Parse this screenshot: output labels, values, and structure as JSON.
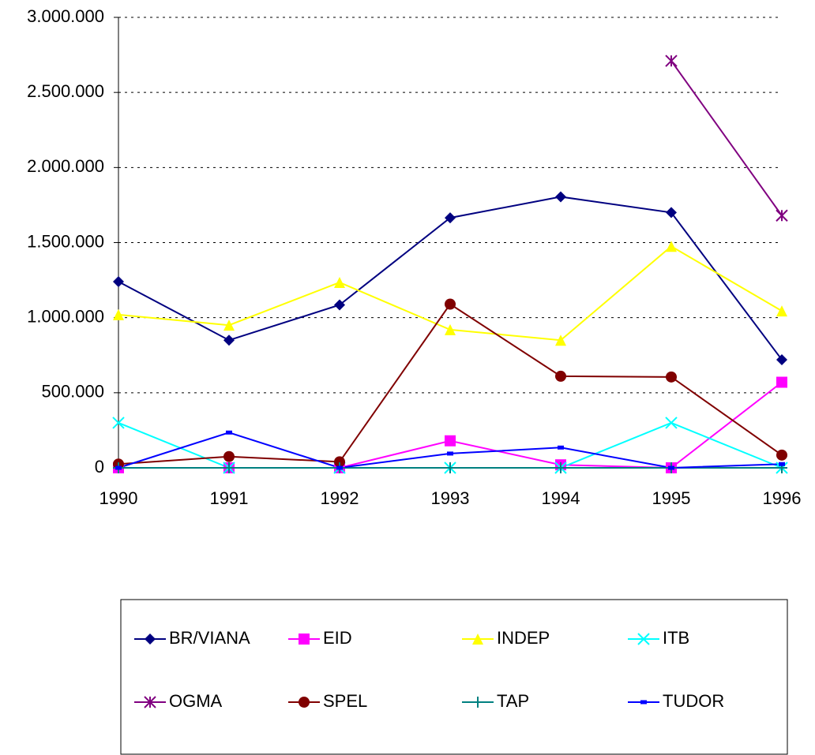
{
  "chart_data": {
    "type": "line",
    "categories": [
      "1990",
      "1991",
      "1992",
      "1993",
      "1994",
      "1995",
      "1996"
    ],
    "ylim": [
      0,
      3000000
    ],
    "yticks": [
      0,
      {
        "value": 500000,
        "label": "500.000"
      },
      {
        "value": 1000000,
        "label": "1.000.000"
      },
      {
        "value": 1500000,
        "label": "1.500.000"
      },
      {
        "value": 2000000,
        "label": "2.000.000"
      },
      {
        "value": 2500000,
        "label": "2.500.000"
      },
      {
        "value": 3000000,
        "label": "3.000.000"
      }
    ],
    "grid": true,
    "legend": "bottom",
    "series": [
      {
        "name": "BR/VIANA",
        "color": "#000080",
        "marker": "diamond",
        "values": [
          1240000,
          850000,
          1085000,
          1665000,
          1805000,
          1700000,
          720000
        ]
      },
      {
        "name": "EID",
        "color": "#ff00ff",
        "marker": "square",
        "values": [
          0,
          0,
          0,
          180000,
          20000,
          0,
          570000
        ]
      },
      {
        "name": "INDEP",
        "color": "#ffff00",
        "marker": "triangle",
        "values": [
          1020000,
          950000,
          1235000,
          920000,
          850000,
          1475000,
          1045000
        ]
      },
      {
        "name": "ITB",
        "color": "#00ffff",
        "marker": "x",
        "values": [
          300000,
          0,
          0,
          0,
          0,
          300000,
          0
        ]
      },
      {
        "name": "OGMA",
        "color": "#800080",
        "marker": "star",
        "values": [
          null,
          null,
          null,
          null,
          null,
          2710000,
          1680000
        ]
      },
      {
        "name": "SPEL",
        "color": "#800000",
        "marker": "circle",
        "values": [
          25000,
          75000,
          40000,
          1090000,
          610000,
          605000,
          85000
        ]
      },
      {
        "name": "TAP",
        "color": "#008080",
        "marker": "plus",
        "values": [
          0,
          0,
          0,
          0,
          0,
          0,
          0
        ]
      },
      {
        "name": "TUDOR",
        "color": "#0000ff",
        "marker": "dash",
        "values": [
          0,
          235000,
          0,
          95000,
          135000,
          0,
          25000
        ]
      }
    ]
  }
}
